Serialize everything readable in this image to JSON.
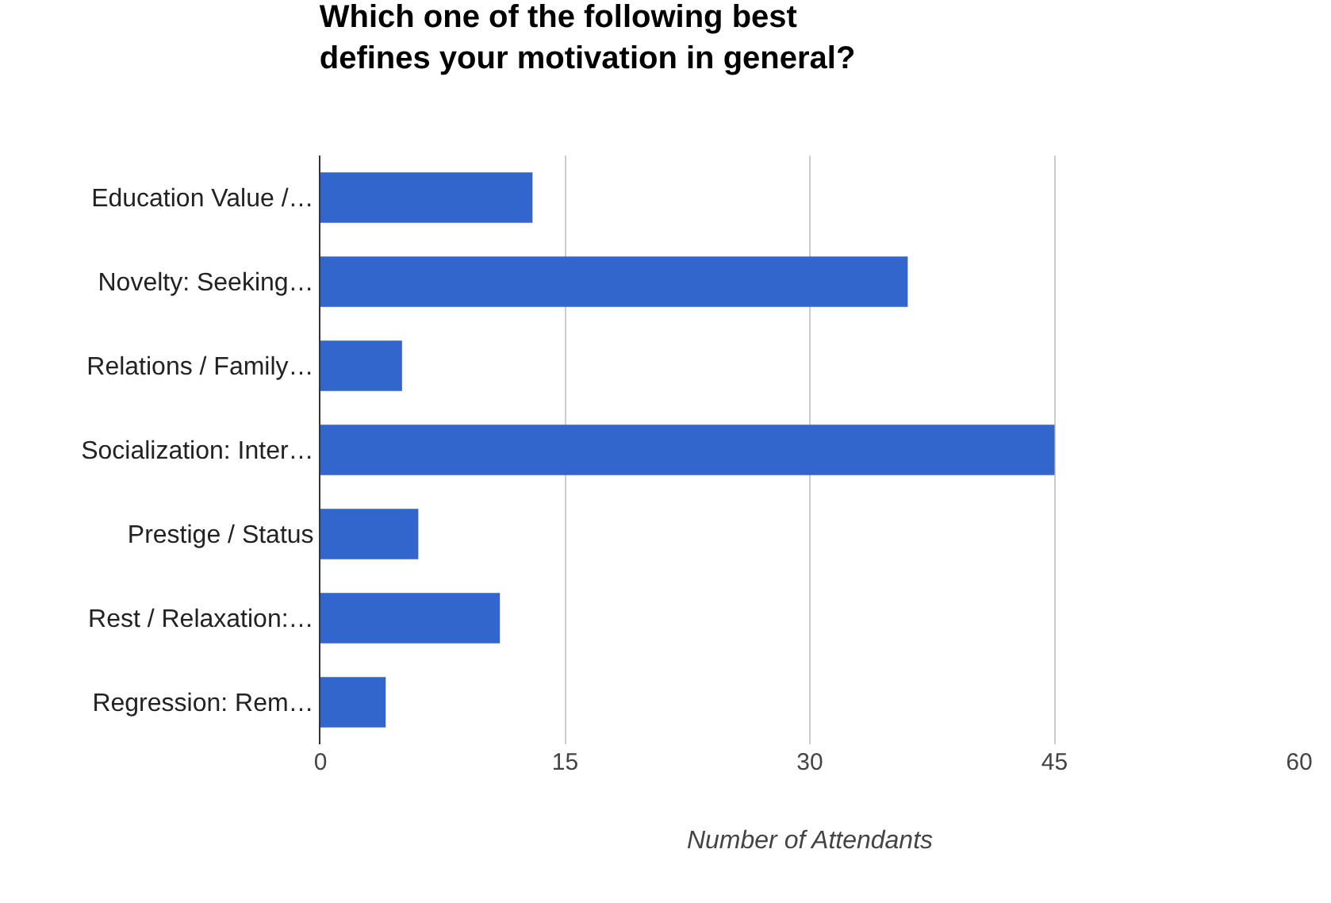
{
  "chart_data": {
    "type": "bar",
    "orientation": "horizontal",
    "title": "Which one of the following best defines your motivation in general?",
    "categories": [
      "Education Value /…",
      "Novelty: Seeking…",
      "Relations / Family…",
      "Socialization: Inter…",
      "Prestige / Status",
      "Rest / Relaxation:…",
      "Regression: Rem…"
    ],
    "values": [
      13,
      36,
      5,
      45,
      6,
      11,
      4
    ],
    "color": "#3366cc",
    "xlabel": "Number of Attendants",
    "xlim": [
      0,
      60
    ],
    "xticks": [
      0,
      15,
      30,
      45,
      60
    ],
    "grid": "x",
    "legend": false
  }
}
